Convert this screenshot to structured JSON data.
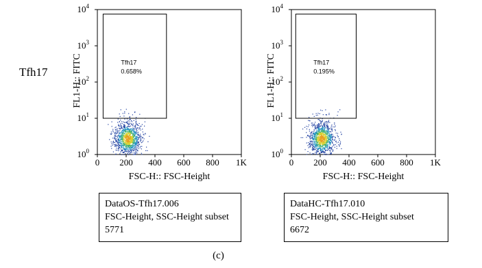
{
  "figure": {
    "row_label": "Tfh17",
    "caption": "(c)"
  },
  "chart_data": [
    {
      "type": "scatter",
      "x_label": "FSC-H:: FSC-Height",
      "y_label": "FL1-H:: FITC",
      "x_ticks": [
        "0",
        "200",
        "400",
        "600",
        "800",
        "1K"
      ],
      "x_range": [
        0,
        1000
      ],
      "y_scale": "log",
      "y_range": [
        1,
        10000
      ],
      "y_ticks": [
        {
          "base": "10",
          "exp": "0"
        },
        {
          "base": "10",
          "exp": "1"
        },
        {
          "base": "10",
          "exp": "2"
        },
        {
          "base": "10",
          "exp": "3"
        },
        {
          "base": "10",
          "exp": "4"
        }
      ],
      "gate": {
        "name": "Tfh17",
        "percent": "0.658%",
        "x_range": [
          40,
          480
        ],
        "y_range": [
          10,
          7500
        ]
      },
      "population": {
        "center_fsc": 210,
        "center_fitc": 2.8
      },
      "info": {
        "file": "DataOS-Tfh17.006",
        "subset": "FSC-Height, SSC-Height subset",
        "count": "5771"
      }
    },
    {
      "type": "scatter",
      "x_label": "FSC-H:: FSC-Height",
      "y_label": "FL1-H:: FITC",
      "x_ticks": [
        "0",
        "200",
        "400",
        "600",
        "800",
        "1K"
      ],
      "x_range": [
        0,
        1000
      ],
      "y_scale": "log",
      "y_range": [
        1,
        10000
      ],
      "y_ticks": [
        {
          "base": "10",
          "exp": "0"
        },
        {
          "base": "10",
          "exp": "1"
        },
        {
          "base": "10",
          "exp": "2"
        },
        {
          "base": "10",
          "exp": "3"
        },
        {
          "base": "10",
          "exp": "4"
        }
      ],
      "gate": {
        "name": "Tfh17",
        "percent": "0.195%",
        "x_range": [
          30,
          450
        ],
        "y_range": [
          10,
          7500
        ]
      },
      "population": {
        "center_fsc": 210,
        "center_fitc": 2.8
      },
      "info": {
        "file": "DataHC-Tfh17.010",
        "subset": "FSC-Height, SSC-Height subset",
        "count": "6672"
      }
    }
  ]
}
